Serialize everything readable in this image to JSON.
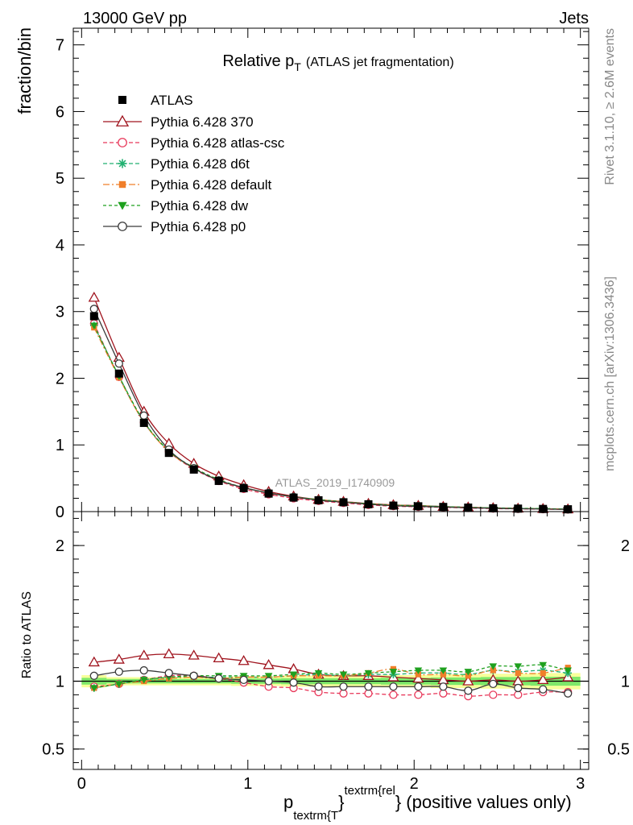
{
  "header": {
    "left": "13000 GeV pp",
    "right": "Jets"
  },
  "side_text": {
    "rivet": "Rivet 3.1.10, ≥ 2.6M events",
    "mcplots": "mcplots.cern.ch [arXiv:1306.3436]"
  },
  "chart_data": {
    "type": "line",
    "title_main": "Relative p",
    "title_sub": "T",
    "title_paren": "(ATLAS jet fragmentation)",
    "analysis_tag": "ATLAS_2019_I1740909",
    "ylabel_top": "fraction/bin",
    "ylabel_bottom": "Ratio to ATLAS",
    "xlabel": {
      "p": "p",
      "sub": "textrm{T",
      "brace": "}",
      "sup": "textrm{rel",
      "rest": "} (positive values only)"
    },
    "xlim": [
      -0.05,
      3.05
    ],
    "ylim_top": [
      0,
      7.25
    ],
    "ylim_bottom": [
      0.35,
      2.25
    ],
    "x_ticks": [
      0,
      1,
      2,
      3
    ],
    "x_tick_labels": [
      "0",
      "1",
      "2",
      "3"
    ],
    "y_ticks_top": [
      0,
      1,
      2,
      3,
      4,
      5,
      6,
      7
    ],
    "y_tick_labels_top": [
      "0",
      "1",
      "2",
      "3",
      "4",
      "5",
      "6",
      "7"
    ],
    "y_ticks_bottom": [
      0.5,
      1,
      2
    ],
    "y_tick_labels_bottom": [
      "0.5",
      "1",
      "2"
    ],
    "legend_position": "top-left",
    "x": [
      0.075,
      0.225,
      0.375,
      0.525,
      0.675,
      0.825,
      0.975,
      1.125,
      1.275,
      1.425,
      1.575,
      1.725,
      1.875,
      2.025,
      2.175,
      2.325,
      2.475,
      2.625,
      2.775,
      2.925
    ],
    "data": {
      "name": "ATLAS",
      "values": [
        2.93,
        2.07,
        1.33,
        0.88,
        0.63,
        0.46,
        0.35,
        0.27,
        0.21,
        0.17,
        0.14,
        0.11,
        0.09,
        0.08,
        0.07,
        0.06,
        0.05,
        0.045,
        0.04,
        0.035
      ]
    },
    "series": [
      {
        "name": "Pythia 6.428 370",
        "color": "#a0141e",
        "dash": "",
        "marker": "triangle-open",
        "values": [
          3.21,
          2.31,
          1.5,
          1.02,
          0.72,
          0.53,
          0.4,
          0.3,
          0.23,
          0.18,
          0.15,
          0.12,
          0.1,
          0.09,
          0.075,
          0.065,
          0.055,
          0.048,
          0.043,
          0.037
        ],
        "ratio": [
          1.14,
          1.16,
          1.19,
          1.2,
          1.19,
          1.17,
          1.15,
          1.12,
          1.09,
          1.05,
          1.04,
          1.04,
          1.03,
          1.02,
          1.01,
          1.0,
          1.01,
          1.0,
          1.01,
          1.03
        ]
      },
      {
        "name": "Pythia 6.428 atlas-csc",
        "color": "#e8385a",
        "dash": "5,3",
        "marker": "circle-open",
        "values": [
          2.82,
          2.02,
          1.34,
          0.9,
          0.64,
          0.46,
          0.34,
          0.26,
          0.2,
          0.16,
          0.13,
          0.1,
          0.082,
          0.072,
          0.064,
          0.054,
          0.045,
          0.041,
          0.037,
          0.032
        ],
        "ratio": [
          0.96,
          0.98,
          1.01,
          1.04,
          1.04,
          1.02,
          0.99,
          0.96,
          0.95,
          0.92,
          0.91,
          0.91,
          0.9,
          0.9,
          0.91,
          0.89,
          0.9,
          0.9,
          0.92,
          0.92
        ]
      },
      {
        "name": "Pythia 6.428 d6t",
        "color": "#20b070",
        "dash": "5,3",
        "marker": "star",
        "values": [
          2.79,
          2.03,
          1.35,
          0.91,
          0.65,
          0.47,
          0.36,
          0.28,
          0.22,
          0.18,
          0.146,
          0.115,
          0.095,
          0.085,
          0.074,
          0.063,
          0.054,
          0.048,
          0.043,
          0.037
        ],
        "ratio": [
          0.95,
          0.98,
          1.01,
          1.03,
          1.03,
          1.03,
          1.03,
          1.03,
          1.04,
          1.05,
          1.04,
          1.05,
          1.05,
          1.06,
          1.06,
          1.05,
          1.08,
          1.07,
          1.08,
          1.06
        ]
      },
      {
        "name": "Pythia 6.428 default",
        "color": "#f07f2a",
        "dash": "8,3,2,3",
        "marker": "square",
        "values": [
          2.76,
          2.01,
          1.34,
          0.9,
          0.65,
          0.47,
          0.36,
          0.28,
          0.22,
          0.18,
          0.146,
          0.115,
          0.098,
          0.084,
          0.073,
          0.062,
          0.054,
          0.048,
          0.042,
          0.038
        ],
        "ratio": [
          0.95,
          0.98,
          1.0,
          1.02,
          1.03,
          1.02,
          1.03,
          1.03,
          1.04,
          1.04,
          1.04,
          1.06,
          1.09,
          1.05,
          1.05,
          1.04,
          1.08,
          1.06,
          1.06,
          1.1
        ]
      },
      {
        "name": "Pythia 6.428 dw",
        "color": "#1ea01e",
        "dash": "4,3",
        "marker": "triangle-down",
        "values": [
          2.79,
          2.03,
          1.35,
          0.91,
          0.66,
          0.48,
          0.36,
          0.28,
          0.22,
          0.18,
          0.146,
          0.116,
          0.097,
          0.087,
          0.075,
          0.064,
          0.056,
          0.05,
          0.045,
          0.037
        ],
        "ratio": [
          0.95,
          0.98,
          1.01,
          1.03,
          1.04,
          1.04,
          1.04,
          1.04,
          1.05,
          1.06,
          1.05,
          1.06,
          1.07,
          1.08,
          1.08,
          1.07,
          1.11,
          1.11,
          1.12,
          1.08
        ]
      },
      {
        "name": "Pythia 6.428 p0",
        "color": "#3a3a3a",
        "dash": "",
        "marker": "circle-open",
        "values": [
          3.04,
          2.22,
          1.44,
          0.93,
          0.65,
          0.47,
          0.36,
          0.28,
          0.22,
          0.17,
          0.14,
          0.11,
          0.088,
          0.078,
          0.068,
          0.057,
          0.049,
          0.043,
          0.038,
          0.032
        ],
        "ratio": [
          1.04,
          1.07,
          1.08,
          1.06,
          1.04,
          1.02,
          1.01,
          1.0,
          0.99,
          0.96,
          0.96,
          0.96,
          0.96,
          0.96,
          0.96,
          0.93,
          0.98,
          0.95,
          0.94,
          0.91
        ]
      }
    ],
    "band_color_inner": "#55e05a",
    "band_color_outer": "#f7ff9a"
  }
}
